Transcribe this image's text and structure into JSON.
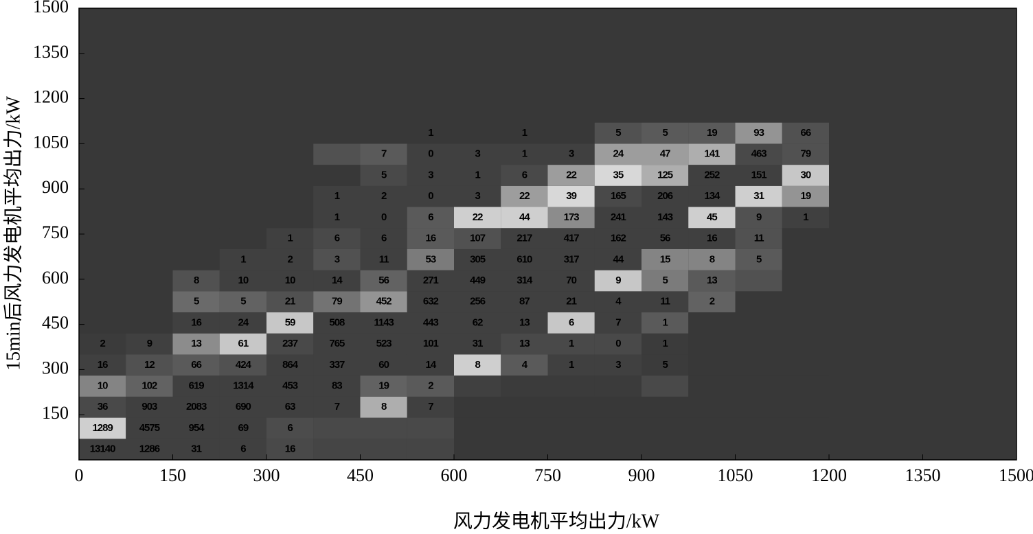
{
  "chart_data": {
    "type": "heatmap",
    "xlabel": "风力发电机平均出力/kW",
    "ylabel": "15min后风力发电机平均出力/kW",
    "xlim": [
      0,
      1500
    ],
    "ylim": [
      0,
      1500
    ],
    "xticks": [
      0,
      150,
      300,
      450,
      600,
      750,
      900,
      1050,
      1200,
      1350,
      1500
    ],
    "yticks": [
      150,
      300,
      450,
      600,
      750,
      900,
      1050,
      1200,
      1350,
      1500
    ],
    "x_bins": [
      0,
      75,
      150,
      225,
      300,
      375,
      450,
      525,
      600,
      675,
      750,
      825,
      900,
      975,
      1050,
      1125,
      1200
    ],
    "y_bins": [
      0,
      70,
      140,
      210,
      280,
      350,
      420,
      490,
      560,
      630,
      700,
      770,
      840,
      910,
      980,
      1050,
      1120
    ],
    "z": [
      [
        13140,
        1286,
        31,
        6,
        16,
        null,
        null,
        null,
        null,
        null,
        null,
        null,
        null,
        null,
        null,
        null
      ],
      [
        1289,
        4575,
        954,
        69,
        6,
        null,
        null,
        null,
        null,
        null,
        null,
        null,
        null,
        null,
        null,
        null
      ],
      [
        36,
        903,
        2083,
        690,
        63,
        7,
        8,
        7,
        null,
        null,
        null,
        null,
        null,
        null,
        null,
        null
      ],
      [
        10,
        102,
        619,
        1314,
        453,
        83,
        19,
        2,
        null,
        null,
        null,
        null,
        null,
        null,
        null,
        null
      ],
      [
        16,
        12,
        66,
        424,
        864,
        337,
        60,
        14,
        8,
        4,
        1,
        3,
        5,
        null,
        null,
        null
      ],
      [
        2,
        9,
        13,
        61,
        237,
        765,
        523,
        101,
        31,
        13,
        1,
        0,
        1,
        null,
        null,
        null
      ],
      [
        null,
        null,
        16,
        24,
        59,
        508,
        1143,
        443,
        62,
        13,
        6,
        7,
        1,
        null,
        null,
        null
      ],
      [
        null,
        null,
        5,
        5,
        21,
        79,
        452,
        632,
        256,
        87,
        21,
        4,
        11,
        2,
        null,
        null
      ],
      [
        null,
        null,
        8,
        10,
        10,
        14,
        56,
        271,
        449,
        314,
        70,
        9,
        5,
        13,
        null,
        null
      ],
      [
        null,
        null,
        null,
        1,
        2,
        3,
        11,
        53,
        305,
        610,
        317,
        44,
        15,
        8,
        5,
        null
      ],
      [
        null,
        null,
        null,
        null,
        1,
        6,
        6,
        16,
        107,
        217,
        417,
        162,
        56,
        16,
        11,
        null
      ],
      [
        null,
        null,
        null,
        null,
        null,
        1,
        0,
        6,
        22,
        44,
        173,
        241,
        143,
        45,
        9,
        1
      ],
      [
        null,
        null,
        null,
        null,
        null,
        1,
        2,
        0,
        3,
        22,
        39,
        165,
        206,
        134,
        31,
        19
      ],
      [
        null,
        null,
        null,
        null,
        null,
        null,
        5,
        3,
        1,
        6,
        22,
        35,
        125,
        252,
        151,
        30
      ],
      [
        null,
        null,
        null,
        null,
        null,
        null,
        7,
        0,
        3,
        1,
        3,
        24,
        47,
        141,
        463,
        79
      ],
      [
        null,
        null,
        null,
        null,
        null,
        null,
        null,
        1,
        null,
        1,
        null,
        5,
        5,
        19,
        93,
        66
      ]
    ],
    "shade": [
      [
        0.05,
        0.05,
        0.05,
        0.05,
        0.1,
        0.08,
        0.08,
        0.08,
        0,
        0,
        0,
        0,
        0,
        0,
        0,
        0
      ],
      [
        0.9,
        0.05,
        0.05,
        0.05,
        0.12,
        0.1,
        0.1,
        0.1,
        0,
        0,
        0,
        0,
        0,
        0,
        0,
        0
      ],
      [
        0.1,
        0.05,
        0.05,
        0.05,
        0.05,
        0.05,
        0.7,
        0.05,
        0,
        0,
        0,
        0,
        0,
        0,
        0,
        0
      ],
      [
        0.45,
        0.25,
        0.05,
        0.05,
        0.05,
        0.05,
        0.25,
        0.2,
        0.05,
        0.02,
        0.02,
        0.02,
        0.1,
        0,
        0,
        0
      ],
      [
        0.05,
        0.15,
        0.2,
        0.15,
        0.05,
        0.05,
        0.05,
        0.05,
        0.9,
        0.2,
        0.05,
        0.05,
        0.02,
        0,
        0,
        0
      ],
      [
        0.02,
        0.05,
        0.5,
        0.85,
        0.1,
        0.05,
        0.05,
        0.05,
        0.05,
        0.1,
        0.1,
        0.1,
        0.02,
        0,
        0,
        0
      ],
      [
        0,
        0,
        0.05,
        0.05,
        0.85,
        0.05,
        0.05,
        0.05,
        0.05,
        0.05,
        0.85,
        0.05,
        0.2,
        0,
        0,
        0
      ],
      [
        0,
        0,
        0.3,
        0.25,
        0.15,
        0.35,
        0.55,
        0.05,
        0.05,
        0.05,
        0.05,
        0.05,
        0.05,
        0.25,
        0,
        0
      ],
      [
        0,
        0,
        0.15,
        0.05,
        0.05,
        0.05,
        0.25,
        0.05,
        0.05,
        0.05,
        0.05,
        0.85,
        0.4,
        0.2,
        0.15,
        0
      ],
      [
        0,
        0,
        0,
        0.05,
        0.05,
        0.15,
        0.05,
        0.4,
        0.05,
        0.05,
        0.05,
        0.05,
        0.45,
        0.45,
        0.2,
        0
      ],
      [
        0,
        0,
        0,
        0,
        0.05,
        0.1,
        0.05,
        0.2,
        0.15,
        0.05,
        0.05,
        0.05,
        0.05,
        0.05,
        0.15,
        0
      ],
      [
        0,
        0,
        0,
        0,
        0,
        0.05,
        0.05,
        0.2,
        0.9,
        0.9,
        0.5,
        0.05,
        0.05,
        0.9,
        0.15,
        0.05
      ],
      [
        0,
        0,
        0,
        0,
        0,
        0.05,
        0.05,
        0.05,
        0.05,
        0.6,
        0.95,
        0.1,
        0.05,
        0.05,
        0.9,
        0.55
      ],
      [
        0,
        0,
        0,
        0,
        0,
        0,
        0.1,
        0.05,
        0.05,
        0.1,
        0.6,
        0.95,
        0.7,
        0.05,
        0.05,
        0.85
      ],
      [
        0,
        0,
        0,
        0,
        0,
        0.15,
        0.2,
        0.05,
        0.05,
        0.05,
        0.05,
        0.6,
        0.6,
        0.7,
        0.1,
        0.15
      ],
      [
        0,
        0,
        0,
        0,
        0,
        0,
        0,
        0,
        0,
        0,
        0,
        0.15,
        0.2,
        0.2,
        0.55,
        0.15
      ]
    ],
    "background": "#383838",
    "shade_max_color": "#e0e0e0"
  }
}
